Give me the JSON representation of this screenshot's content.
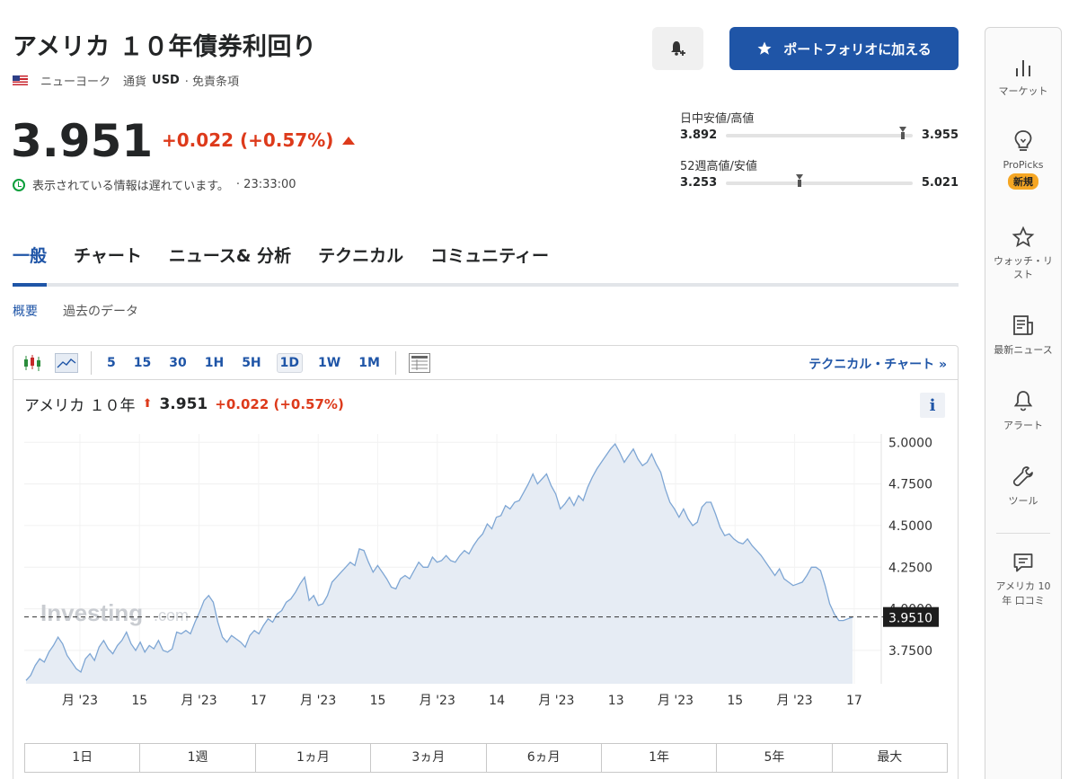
{
  "instrument": {
    "title": "アメリカ １０年債券利回り",
    "exchange": "ニューヨーク",
    "currency_label": "通貨",
    "currency": "USD",
    "disclaimer": "· 免責条項",
    "price": "3.951",
    "change": "+0.022 (+0.57%)",
    "delay_text": "表示されている情報は遅れています。",
    "time": "· 23:33:00"
  },
  "actions": {
    "portfolio_label": "ポートフォリオに加える",
    "bell_icon": "bell-plus-icon"
  },
  "ranges": {
    "day_label": "日中安値/高値",
    "day_low": "3.892",
    "day_high": "3.955",
    "day_position": 0.95,
    "week52_label": "52週高値/安値",
    "week52_low": "3.253",
    "week52_high": "5.021",
    "week52_position": 0.395
  },
  "tabs": [
    "一般",
    "チャート",
    "ニュース& 分析",
    "テクニカル",
    "コミュニティー"
  ],
  "subtabs": [
    "概要",
    "過去のデータ"
  ],
  "chart_toolbar": {
    "intervals": [
      "5",
      "15",
      "30",
      "1H",
      "5H",
      "1D",
      "1W",
      "1M"
    ],
    "selected": "1D",
    "tech_link": "テクニカル・チャート »"
  },
  "chart_header": {
    "name": "アメリカ １０年",
    "price": "3.951",
    "change": "+0.022 (+0.57%)"
  },
  "watermark": {
    "main": "Investing",
    "suffix": ".com"
  },
  "chart_data": {
    "type": "area",
    "current_value": "3.9510",
    "y_ticks": [
      "5.0000",
      "4.7500",
      "4.5000",
      "4.2500",
      "4.0000",
      "3.7500"
    ],
    "x_ticks": [
      "月 '23",
      "15",
      "月 '23",
      "17",
      "月 '23",
      "15",
      "月 '23",
      "14",
      "月 '23",
      "13",
      "月 '23",
      "15",
      "月 '23",
      "17"
    ],
    "ylim": [
      3.55,
      5.05
    ],
    "values": [
      3.57,
      3.6,
      3.66,
      3.7,
      3.68,
      3.74,
      3.78,
      3.83,
      3.79,
      3.72,
      3.68,
      3.64,
      3.62,
      3.7,
      3.73,
      3.69,
      3.77,
      3.81,
      3.76,
      3.73,
      3.78,
      3.81,
      3.86,
      3.79,
      3.75,
      3.8,
      3.74,
      3.78,
      3.76,
      3.81,
      3.75,
      3.74,
      3.76,
      3.86,
      3.85,
      3.87,
      3.85,
      3.92,
      3.98,
      4.05,
      4.08,
      4.04,
      3.92,
      3.83,
      3.8,
      3.84,
      3.82,
      3.8,
      3.77,
      3.84,
      3.87,
      3.85,
      3.9,
      3.94,
      3.92,
      3.97,
      3.99,
      4.04,
      4.06,
      4.1,
      4.15,
      4.19,
      4.05,
      4.08,
      4.02,
      4.03,
      4.08,
      4.16,
      4.19,
      4.22,
      4.25,
      4.28,
      4.26,
      4.36,
      4.35,
      4.28,
      4.22,
      4.26,
      4.22,
      4.18,
      4.13,
      4.12,
      4.18,
      4.2,
      4.18,
      4.23,
      4.28,
      4.25,
      4.25,
      4.31,
      4.28,
      4.29,
      4.32,
      4.29,
      4.28,
      4.32,
      4.35,
      4.33,
      4.38,
      4.42,
      4.45,
      4.51,
      4.48,
      4.55,
      4.56,
      4.62,
      4.6,
      4.64,
      4.65,
      4.7,
      4.75,
      4.81,
      4.75,
      4.78,
      4.81,
      4.74,
      4.69,
      4.6,
      4.63,
      4.67,
      4.62,
      4.68,
      4.65,
      4.73,
      4.79,
      4.84,
      4.88,
      4.92,
      4.96,
      4.99,
      4.94,
      4.88,
      4.92,
      4.96,
      4.9,
      4.86,
      4.88,
      4.93,
      4.87,
      4.82,
      4.72,
      4.64,
      4.6,
      4.55,
      4.6,
      4.54,
      4.5,
      4.52,
      4.61,
      4.64,
      4.64,
      4.57,
      4.49,
      4.44,
      4.45,
      4.42,
      4.4,
      4.39,
      4.42,
      4.38,
      4.35,
      4.32,
      4.28,
      4.24,
      4.2,
      4.24,
      4.18,
      4.16,
      4.14,
      4.15,
      4.16,
      4.2,
      4.25,
      4.25,
      4.23,
      4.14,
      4.03,
      3.97,
      3.93,
      3.93,
      3.94,
      3.95
    ],
    "period_buttons": [
      "1日",
      "1週",
      "1ヵ月",
      "3ヵ月",
      "6ヵ月",
      "1年",
      "5年",
      "最大"
    ]
  },
  "sidebar": [
    {
      "label": "マーケット",
      "icon": "bar-chart-icon"
    },
    {
      "label": "ProPicks",
      "icon": "lightbulb-icon",
      "badge": "新規"
    },
    {
      "label": "ウォッチ・リスト",
      "icon": "star-icon"
    },
    {
      "label": "最新ニュース",
      "icon": "news-icon"
    },
    {
      "label": "アラート",
      "icon": "bell-icon"
    },
    {
      "label": "ツール",
      "icon": "wrench-icon"
    },
    {
      "label": "アメリカ 10年 口コミ",
      "icon": "comment-icon"
    }
  ]
}
